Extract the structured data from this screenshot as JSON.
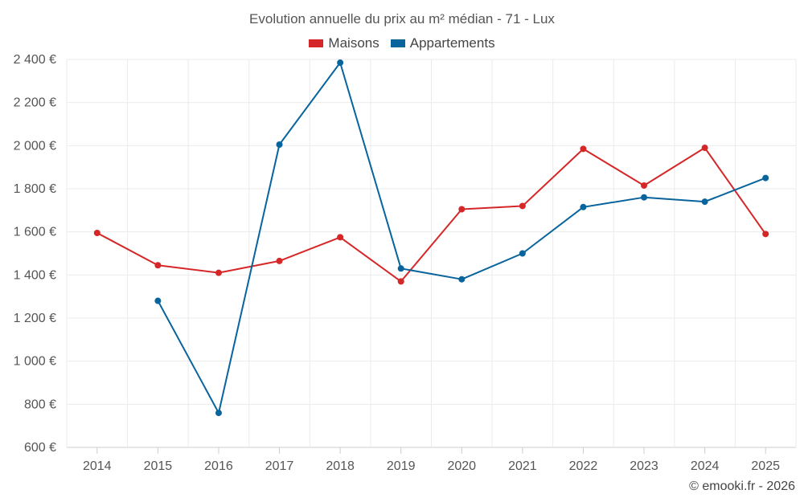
{
  "chart_data": {
    "type": "line",
    "title": "Evolution annuelle du prix au m² médian - 71 - Lux",
    "xlabel": "",
    "ylabel": "",
    "categories": [
      "2014",
      "2015",
      "2016",
      "2017",
      "2018",
      "2019",
      "2020",
      "2021",
      "2022",
      "2023",
      "2024",
      "2025"
    ],
    "ylim": [
      600,
      2400
    ],
    "yticks": [
      600,
      800,
      1000,
      1200,
      1400,
      1600,
      1800,
      2000,
      2200,
      2400
    ],
    "ytick_labels": [
      "600 €",
      "800 €",
      "1 000 €",
      "1 200 €",
      "1 400 €",
      "1 600 €",
      "1 800 €",
      "2 000 €",
      "2 200 €",
      "2 400 €"
    ],
    "grid": true,
    "legend_position": "top-center",
    "series": [
      {
        "name": "Maisons",
        "color": "#d62728",
        "values": [
          1595,
          1445,
          1410,
          1465,
          1575,
          1370,
          1705,
          1720,
          1985,
          1815,
          1990,
          1590
        ]
      },
      {
        "name": "Appartements",
        "color": "#08649c",
        "values": [
          null,
          1280,
          760,
          2005,
          2385,
          1430,
          1380,
          1500,
          1715,
          1760,
          1740,
          1850
        ]
      }
    ]
  },
  "credit": "© emooki.fr - 2026"
}
